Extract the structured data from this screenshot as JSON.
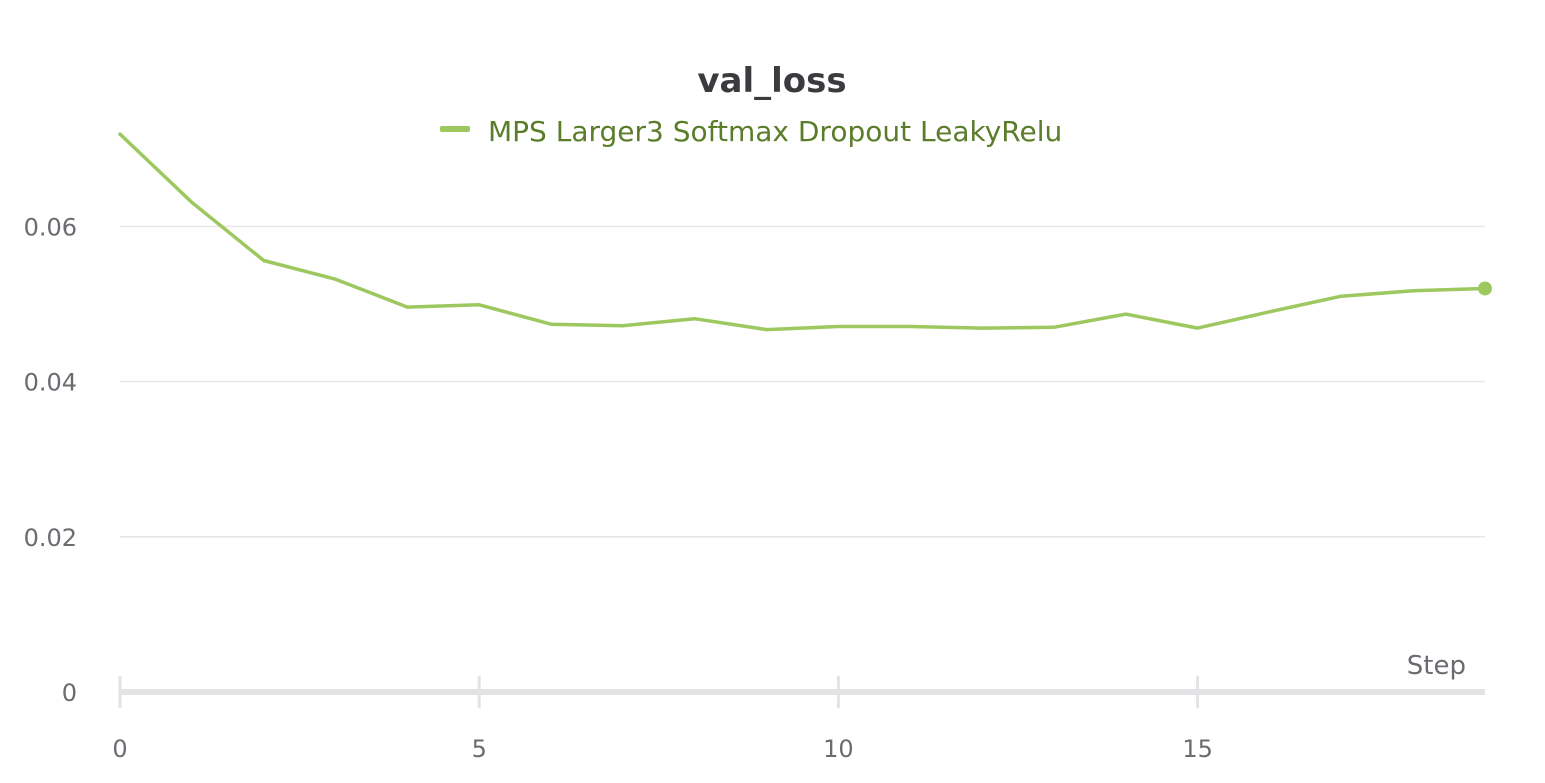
{
  "chart_data": {
    "type": "line",
    "title": "val_loss",
    "xlabel": "Step",
    "ylabel": "",
    "xlim": [
      0,
      19
    ],
    "ylim": [
      0,
      0.075
    ],
    "x_ticks": [
      0,
      5,
      10,
      15
    ],
    "y_ticks": [
      0,
      0.02,
      0.04,
      0.06
    ],
    "y_tick_labels": [
      "0",
      "0.02",
      "0.04",
      "0.06"
    ],
    "grid": true,
    "legend_position": "top-center",
    "series": [
      {
        "name": "MPS Larger3 Softmax Dropout LeakyRelu",
        "color": "#9dc85f",
        "legend_text_color": "#5b7d2a",
        "x": [
          0,
          1,
          2,
          3,
          4,
          5,
          6,
          7,
          8,
          9,
          10,
          11,
          12,
          13,
          14,
          15,
          16,
          17,
          18,
          19
        ],
        "values": [
          0.0719,
          0.0631,
          0.0556,
          0.0532,
          0.0496,
          0.0499,
          0.0474,
          0.0472,
          0.0481,
          0.0467,
          0.0471,
          0.0471,
          0.0469,
          0.047,
          0.0487,
          0.0469,
          0.049,
          0.051,
          0.0517,
          0.052
        ]
      }
    ]
  }
}
